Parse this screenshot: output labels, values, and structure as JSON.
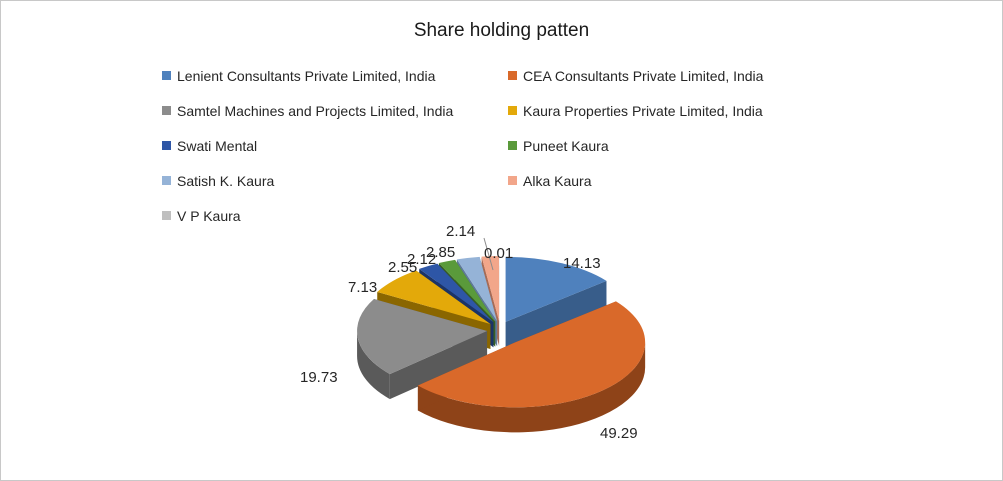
{
  "chart_data": {
    "type": "pie",
    "title": "Share holding patten",
    "legend_position": "top",
    "slices": [
      {
        "name": "Lenient Consultants Private Limited, India",
        "value": 14.13,
        "label": "14.13",
        "color": "#4f81bd",
        "side": "#385d8a"
      },
      {
        "name": "CEA Consultants Private Limited, India",
        "value": 49.29,
        "label": "49.29",
        "color": "#d9692a",
        "side": "#8e4318"
      },
      {
        "name": "Samtel Machines and Projects Limited, India",
        "value": 19.73,
        "label": "19.73",
        "color": "#8c8c8c",
        "side": "#5a5a5a"
      },
      {
        "name": "Kaura Properties Private Limited, India",
        "value": 7.13,
        "label": "7.13",
        "color": "#e3a90a",
        "side": "#8a6600"
      },
      {
        "name": "Swati Mental",
        "value": 2.55,
        "label": "2.55",
        "color": "#2e56a6",
        "side": "#1c3466"
      },
      {
        "name": "Puneet Kaura",
        "value": 2.12,
        "label": "2.12",
        "color": "#5a9a3b",
        "side": "#375e24"
      },
      {
        "name": "Satish K. Kaura",
        "value": 2.85,
        "label": "2.85",
        "color": "#95b3d7",
        "side": "#5f7a99"
      },
      {
        "name": "Alka Kaura",
        "value": 2.14,
        "label": "2.14",
        "color": "#f2a68a",
        "side": "#a86b55"
      },
      {
        "name": "V P Kaura",
        "value": 0.01,
        "label": "0.01",
        "color": "#bfbfbf",
        "side": "#7f7f7f"
      }
    ]
  }
}
